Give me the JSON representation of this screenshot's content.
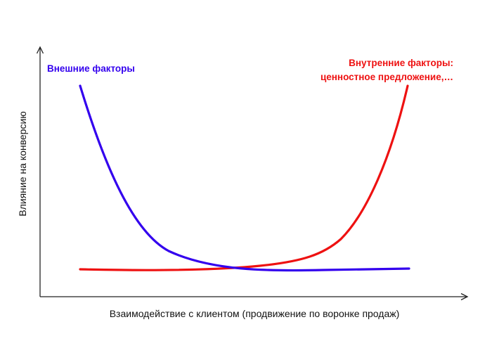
{
  "diagram": {
    "x_axis_label": "Взаимодействие с клиентом (продвижение по воронке продаж)",
    "y_axis_label": "Влияние на конверсию"
  },
  "series": {
    "external": {
      "label": "Внешние факторы",
      "color": "#3300ee"
    },
    "internal": {
      "label_line1": "Внутренние факторы:",
      "label_line2": "ценностное предложение,…",
      "color": "#ee1111"
    }
  },
  "colors": {
    "axis": "#222222",
    "background": "#ffffff"
  }
}
